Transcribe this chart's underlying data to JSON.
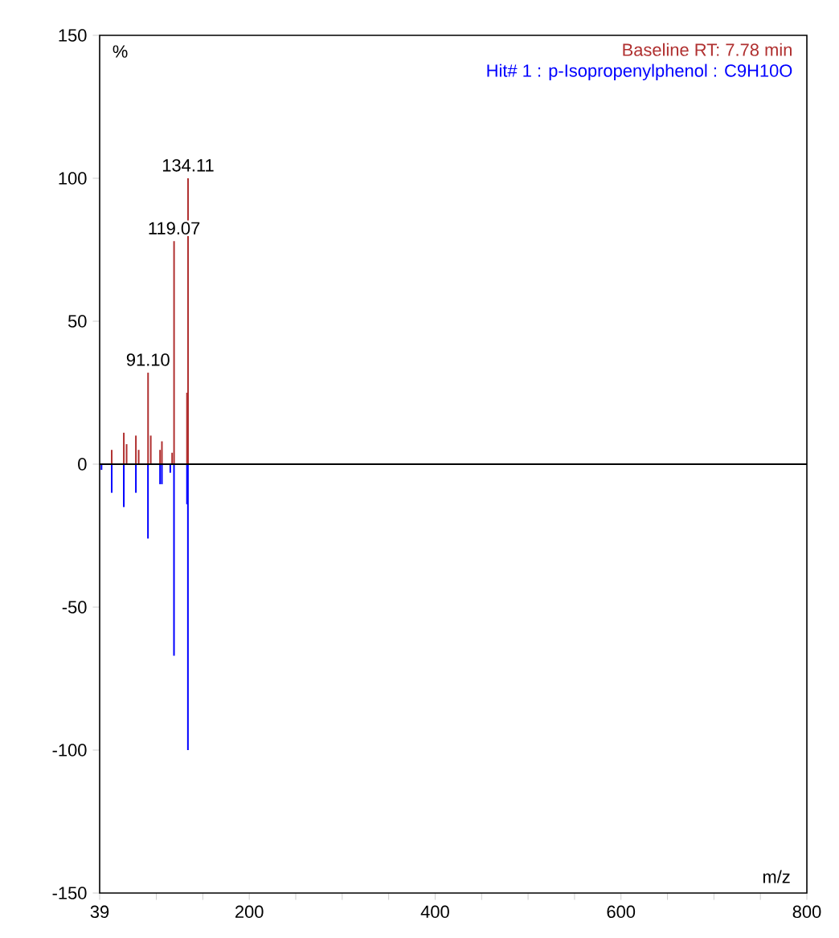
{
  "chart_data": {
    "type": "bar",
    "xlabel": "m/z",
    "ylabel": "%",
    "legend": "top right",
    "series": [
      {
        "name": "Baseline RT: 7.78 min",
        "color": "#b03030",
        "x": [
          52,
          65,
          68,
          78,
          81,
          91.1,
          94,
          104,
          106,
          117,
          119.07,
          133,
          134.11
        ],
        "values": [
          5,
          11,
          7,
          10,
          5,
          32,
          10,
          5,
          8,
          4,
          78,
          25,
          100
        ]
      },
      {
        "name": "Hit# 1 : p-Isopropenylphenol : C9H10O",
        "color": "#0000ff",
        "x": [
          41,
          52,
          65,
          78,
          91,
          104,
          106,
          115,
          119,
          133,
          134
        ],
        "values": [
          -2,
          -10,
          -15,
          -10,
          -26,
          -7,
          -7,
          -3,
          -67,
          -14,
          -100
        ]
      }
    ],
    "xlim": [
      39,
      800
    ],
    "xticks": [
      39,
      {
        "value": 100,
        "label": null
      },
      {
        "value": 150,
        "label": null
      },
      200,
      {
        "value": 250,
        "label": null
      },
      {
        "value": 300,
        "label": null
      },
      {
        "value": 350,
        "label": null
      },
      400,
      {
        "value": 450,
        "label": null
      },
      {
        "value": 500,
        "label": null
      },
      {
        "value": 550,
        "label": null
      },
      600,
      {
        "value": 650,
        "label": null
      },
      {
        "value": 700,
        "label": null
      },
      {
        "value": 750,
        "label": null
      },
      800
    ],
    "ylim": [
      -150,
      150
    ],
    "yticks": [
      150,
      100,
      50,
      0,
      -50,
      -100,
      -150
    ],
    "ref_lines": [
      {
        "axis": "y",
        "value": 0,
        "color": "#000000"
      }
    ],
    "annotations": [
      {
        "text": "134.11",
        "x": 134.11,
        "y": 100
      },
      {
        "text": "119.07",
        "x": 119.07,
        "y": 78
      },
      {
        "text": "91.10",
        "x": 91.1,
        "y": 32
      }
    ]
  }
}
